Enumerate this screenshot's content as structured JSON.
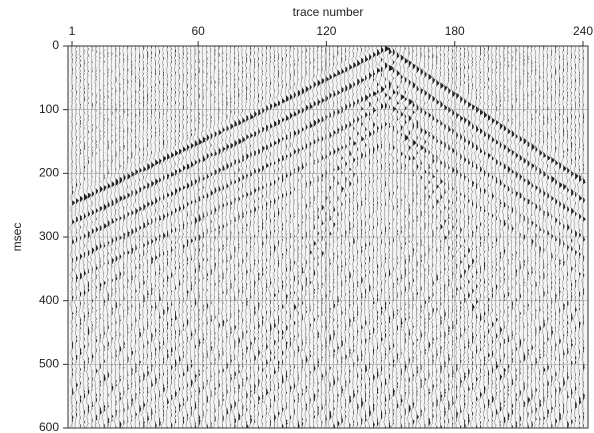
{
  "chart_data": {
    "type": "seismic",
    "xlabel": "trace number",
    "ylabel": "msec",
    "xlim": [
      1,
      240
    ],
    "xticks": [
      1,
      60,
      120,
      180,
      240
    ],
    "ylim": [
      0,
      600
    ],
    "yticks": [
      0,
      100,
      200,
      300,
      400,
      500,
      600
    ],
    "grid": true,
    "color": "#000000"
  }
}
